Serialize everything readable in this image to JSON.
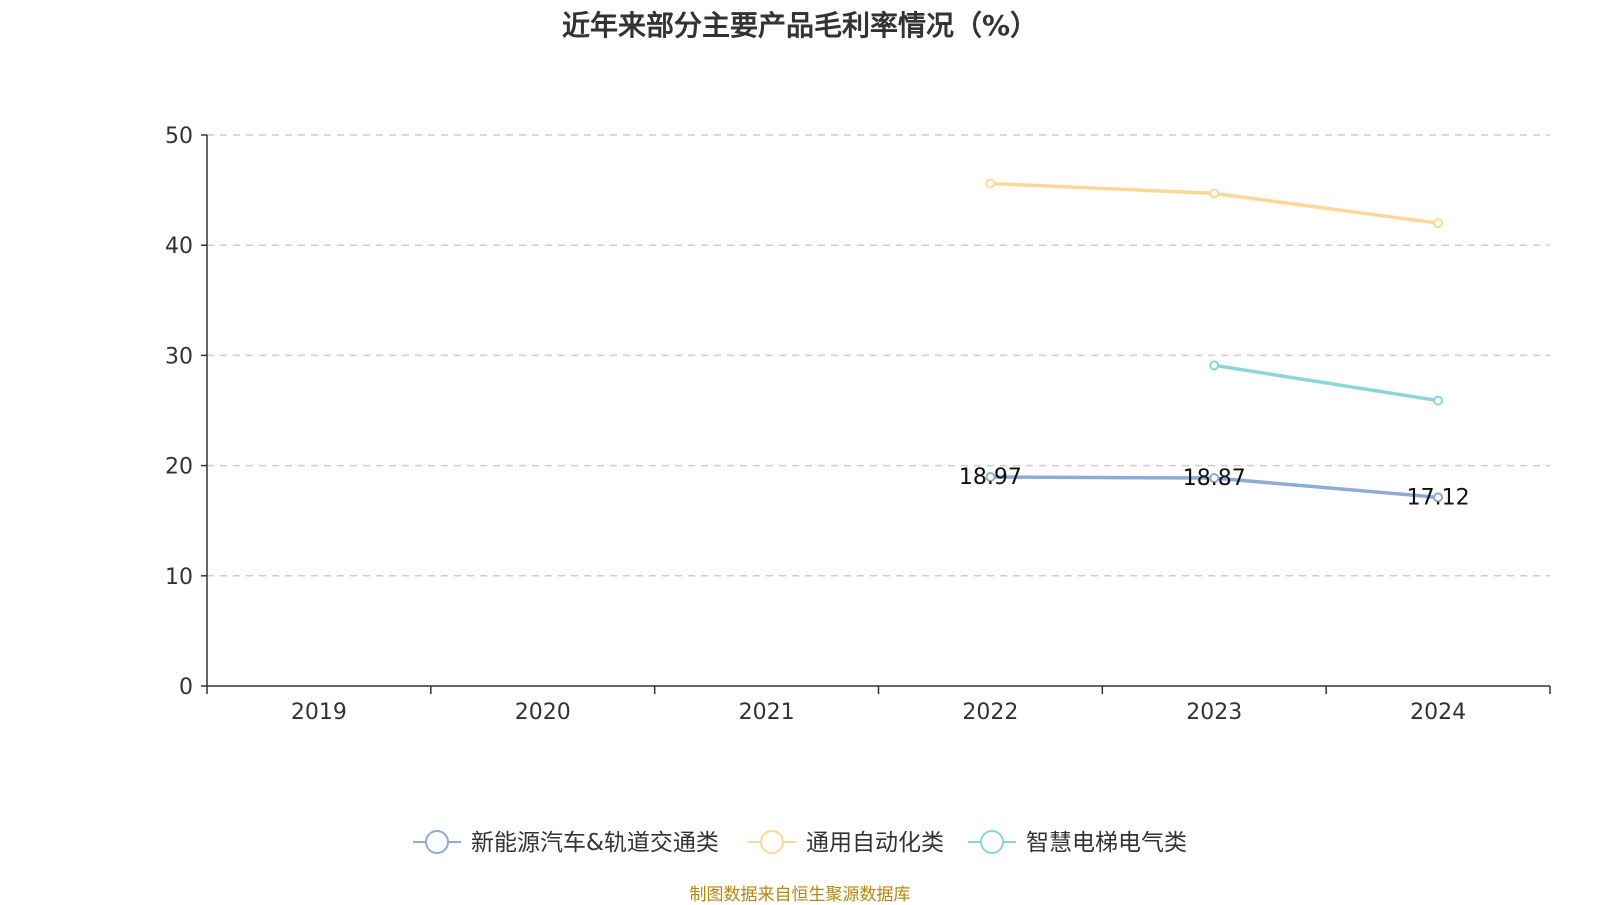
{
  "chart_data": {
    "type": "line",
    "title": "近年来部分主要产品毛利率情况（%）",
    "categories": [
      "2019",
      "2020",
      "2021",
      "2022",
      "2023",
      "2024"
    ],
    "ylim": [
      0,
      50
    ],
    "yticks": [
      "0",
      "10",
      "20",
      "30",
      "40",
      "50"
    ],
    "grid": true,
    "legend_position": "bottom",
    "series": [
      {
        "name": "新能源汽车&轨道交通类",
        "color": "#8eaad6",
        "values": [
          null,
          null,
          null,
          18.97,
          18.87,
          17.12
        ],
        "labels": [
          "",
          "",
          "",
          "18.97",
          "18.87",
          "17.12"
        ]
      },
      {
        "name": "通用自动化类",
        "color": "#fcd896",
        "values": [
          null,
          null,
          null,
          45.6,
          44.7,
          42.0
        ],
        "labels": [
          "",
          "",
          "",
          "",
          "",
          ""
        ]
      },
      {
        "name": "智慧电梯电气类",
        "color": "#8ad6d6",
        "values": [
          null,
          null,
          null,
          null,
          29.1,
          25.9
        ],
        "labels": [
          "",
          "",
          "",
          "",
          "",
          ""
        ]
      }
    ]
  },
  "source_note": "制图数据来自恒生聚源数据库"
}
